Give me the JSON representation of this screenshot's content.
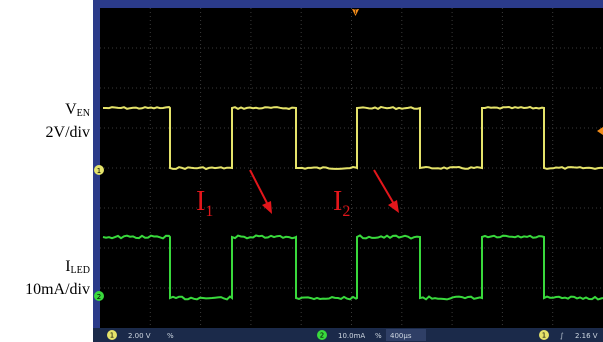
{
  "screen_labels": {
    "ch1_name": "V",
    "ch1_sub": "EN",
    "ch1_scale": "2V/div",
    "ch2_name": "I",
    "ch2_sub": "LED",
    "ch2_scale": "10mA/div"
  },
  "annotations": [
    {
      "label": "I",
      "sub": "1"
    },
    {
      "label": "I",
      "sub": "2"
    }
  ],
  "markers": {
    "ch1": "1",
    "ch2": "2",
    "trigger": "T"
  },
  "status_bar": {
    "ch1_badge": "1",
    "ch1_volts": "2.00 V",
    "ch1_coupling": "%",
    "ch2_badge": "2",
    "ch2_scale": "10.0mA",
    "ch2_coupling": "%",
    "timebase": "400µs",
    "trig_badge": "1",
    "trig_slope": "∫",
    "trig_level": "2.16 V"
  },
  "colors": {
    "screen_bg": "#000000",
    "grid": "#3a3a3a",
    "ch1_trace": "#e5e36a",
    "ch2_trace": "#39d93c",
    "frame": "#2b3b8a",
    "status_bg": "#1b2a4a",
    "annotation": "#e3161b"
  }
}
